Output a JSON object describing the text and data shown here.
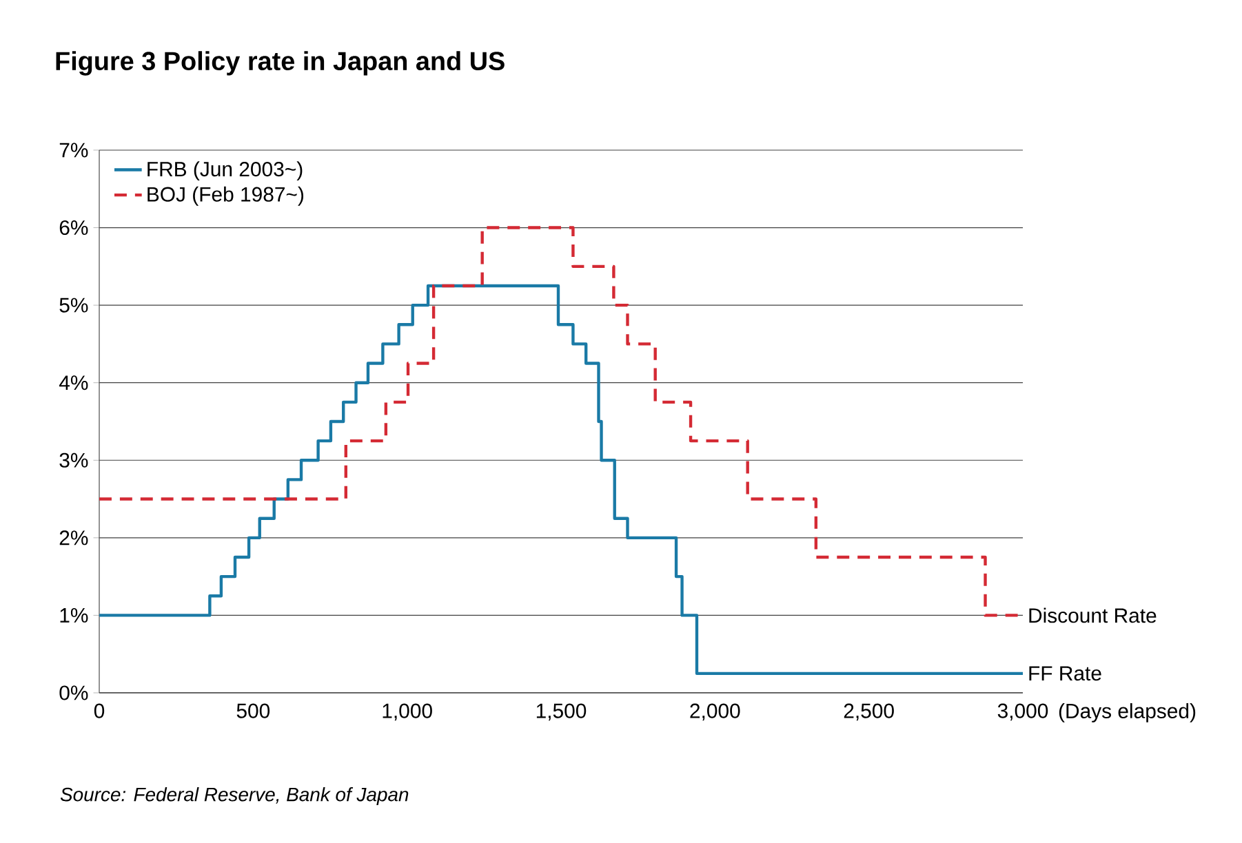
{
  "chart_data": {
    "type": "step",
    "title": "Figure 3 Policy rate in Japan and US",
    "xlabel": "(Days elapsed)",
    "series": [
      {
        "name": "FRB (Jun 2003~)",
        "color": "#1a7aa6",
        "line_style": "solid",
        "x": [
          0,
          359,
          396,
          441,
          486,
          521,
          568,
          613,
          656,
          711,
          752,
          793,
          834,
          873,
          921,
          973,
          1018,
          1068,
          1491,
          1539,
          1581,
          1622,
          1631,
          1674,
          1716,
          1874,
          1893,
          1941,
          3000
        ],
        "values": [
          1,
          1.25,
          1.5,
          1.75,
          2,
          2.25,
          2.5,
          2.75,
          3,
          3.25,
          3.5,
          3.75,
          4,
          4.25,
          4.5,
          4.75,
          5,
          5.25,
          4.75,
          4.5,
          4.25,
          3.5,
          3,
          2.25,
          2,
          1.5,
          1,
          0.25,
          0.25
        ]
      },
      {
        "name": "BOJ (Feb 1987~)",
        "color": "#d42a34",
        "line_style": "dashed",
        "x": [
          0,
          801,
          931,
          1003,
          1086,
          1244,
          1539,
          1671,
          1716,
          1806,
          1921,
          2106,
          2328,
          2878,
          3000
        ],
        "values": [
          2.5,
          3.25,
          3.75,
          4.25,
          5.25,
          6,
          5.5,
          5,
          4.5,
          3.75,
          3.25,
          2.5,
          1.75,
          1,
          1
        ]
      }
    ],
    "xlim": [
      0,
      3000
    ],
    "xticks": [
      0,
      500,
      {
        "value": 1000,
        "label": "1,000"
      },
      {
        "value": 1500,
        "label": "1,500"
      },
      {
        "value": 2000,
        "label": "2,000"
      },
      {
        "value": 2500,
        "label": "2,500"
      },
      {
        "value": 3000,
        "label": "3,000"
      }
    ],
    "ylim": [
      0,
      7
    ],
    "yticks": [
      {
        "value": 0,
        "label": "0%"
      },
      {
        "value": 1,
        "label": "1%"
      },
      {
        "value": 2,
        "label": "2%"
      },
      {
        "value": 3,
        "label": "3%"
      },
      {
        "value": 4,
        "label": "4%"
      },
      {
        "value": 5,
        "label": "5%"
      },
      {
        "value": 6,
        "label": "6%"
      },
      {
        "value": 7,
        "label": "7%"
      }
    ],
    "grid": "y",
    "legend": "top left",
    "annotations": [
      {
        "text": "Discount Rate",
        "x": 3000,
        "y": 1
      },
      {
        "text": "FF Rate",
        "x": 3000,
        "y": 0.25
      },
      "Source: Federal Reserve, Bank of Japan"
    ]
  }
}
